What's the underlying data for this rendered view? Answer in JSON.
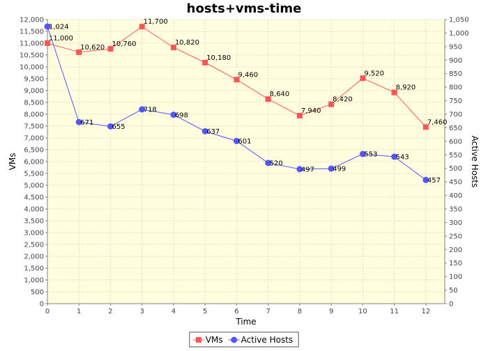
{
  "chart_data": {
    "type": "line",
    "title": "hosts+vms-time",
    "xlabel": "Time",
    "ylabel_left": "VMs",
    "ylabel_right": "Active Hosts",
    "x": [
      0,
      1,
      2,
      3,
      4,
      5,
      6,
      7,
      8,
      9,
      10,
      11,
      12
    ],
    "xlim": [
      0,
      12.6
    ],
    "ylim_left": [
      0,
      12000
    ],
    "ylim_right": [
      0,
      1050
    ],
    "ytick_step_left": 500,
    "ytick_step_right": 50,
    "grid": true,
    "legend_position": "bottom-center",
    "series": [
      {
        "name": "VMs",
        "axis": "left",
        "color": "#ff5555",
        "marker": "square",
        "values": [
          11000,
          10620,
          10760,
          11700,
          10820,
          10180,
          9460,
          8640,
          7940,
          8420,
          9520,
          8920,
          7460
        ],
        "labels": [
          "11,000",
          "10,620",
          "10,760",
          "11,700",
          "10,820",
          "10,180",
          "9,460",
          "8,640",
          "7,940",
          "8,420",
          "9,520",
          "8,920",
          "7,460"
        ]
      },
      {
        "name": "Active Hosts",
        "axis": "right",
        "color": "#5555ff",
        "marker": "circle",
        "values": [
          1024,
          671,
          655,
          718,
          698,
          637,
          601,
          520,
          497,
          499,
          553,
          543,
          457
        ],
        "labels": [
          "1,024",
          "671",
          "655",
          "718",
          "698",
          "637",
          "601",
          "520",
          "497",
          "499",
          "553",
          "543",
          "457"
        ]
      }
    ]
  }
}
